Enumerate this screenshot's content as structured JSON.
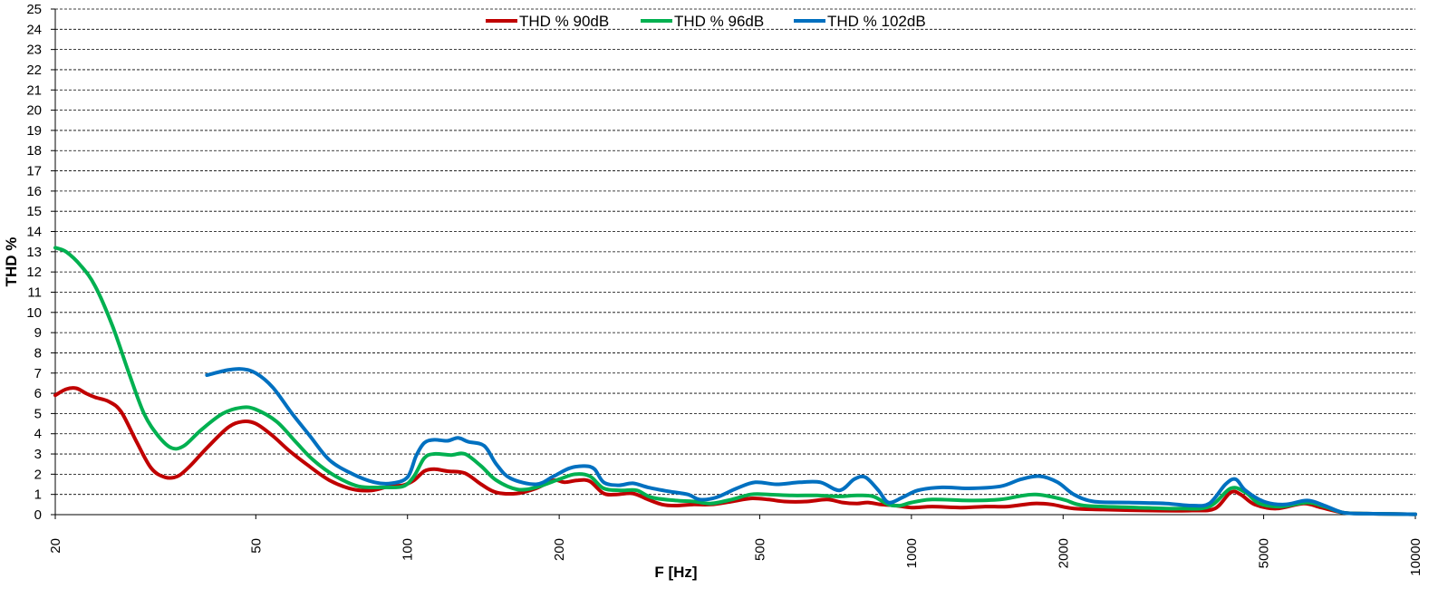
{
  "chart_data": {
    "type": "line",
    "title": "",
    "xlabel": "F [Hz]",
    "ylabel": "THD %",
    "x_scale": "log",
    "xlim": [
      20,
      10000
    ],
    "ylim": [
      0,
      25
    ],
    "x_ticks": [
      20,
      50,
      100,
      200,
      500,
      1000,
      2000,
      5000,
      10000
    ],
    "x_tick_labels": [
      "20",
      "50",
      "100",
      "200",
      "500",
      "1000",
      "2000",
      "5000",
      "10000"
    ],
    "y_ticks": [
      0,
      1,
      2,
      3,
      4,
      5,
      6,
      7,
      8,
      9,
      10,
      11,
      12,
      13,
      14,
      15,
      16,
      17,
      18,
      19,
      20,
      21,
      22,
      23,
      24,
      25
    ],
    "y_tick_labels": [
      "0",
      "1",
      "2",
      "3",
      "4",
      "5",
      "6",
      "7",
      "8",
      "9",
      "10",
      "11",
      "12",
      "13",
      "14",
      "15",
      "16",
      "17",
      "18",
      "19",
      "20",
      "21",
      "22",
      "23",
      "24",
      "25"
    ],
    "grid": "horizontal dashed",
    "legend_position": "top-center",
    "series": [
      {
        "name": "THD % 90dB",
        "color": "#C00000",
        "points": [
          [
            20,
            5.9
          ],
          [
            21,
            6.2
          ],
          [
            22,
            6.25
          ],
          [
            23,
            6.0
          ],
          [
            24,
            5.8
          ],
          [
            25.5,
            5.6
          ],
          [
            27,
            5.1
          ],
          [
            29,
            3.6
          ],
          [
            31,
            2.3
          ],
          [
            33,
            1.85
          ],
          [
            35,
            1.9
          ],
          [
            37,
            2.4
          ],
          [
            40,
            3.3
          ],
          [
            44,
            4.3
          ],
          [
            47,
            4.6
          ],
          [
            50,
            4.5
          ],
          [
            54,
            3.9
          ],
          [
            58,
            3.2
          ],
          [
            63,
            2.5
          ],
          [
            70,
            1.7
          ],
          [
            78,
            1.25
          ],
          [
            85,
            1.2
          ],
          [
            92,
            1.4
          ],
          [
            98,
            1.45
          ],
          [
            103,
            1.7
          ],
          [
            108,
            2.15
          ],
          [
            113,
            2.25
          ],
          [
            120,
            2.15
          ],
          [
            130,
            2.05
          ],
          [
            140,
            1.5
          ],
          [
            150,
            1.1
          ],
          [
            165,
            1.05
          ],
          [
            180,
            1.3
          ],
          [
            195,
            1.7
          ],
          [
            205,
            1.6
          ],
          [
            218,
            1.7
          ],
          [
            230,
            1.65
          ],
          [
            245,
            1.05
          ],
          [
            260,
            1.0
          ],
          [
            280,
            1.05
          ],
          [
            300,
            0.75
          ],
          [
            320,
            0.5
          ],
          [
            340,
            0.45
          ],
          [
            370,
            0.5
          ],
          [
            400,
            0.5
          ],
          [
            440,
            0.65
          ],
          [
            480,
            0.8
          ],
          [
            520,
            0.75
          ],
          [
            560,
            0.65
          ],
          [
            620,
            0.65
          ],
          [
            680,
            0.75
          ],
          [
            730,
            0.6
          ],
          [
            780,
            0.55
          ],
          [
            820,
            0.6
          ],
          [
            870,
            0.5
          ],
          [
            930,
            0.45
          ],
          [
            1000,
            0.35
          ],
          [
            1100,
            0.4
          ],
          [
            1250,
            0.35
          ],
          [
            1400,
            0.4
          ],
          [
            1550,
            0.4
          ],
          [
            1750,
            0.55
          ],
          [
            1900,
            0.5
          ],
          [
            2100,
            0.3
          ],
          [
            2400,
            0.25
          ],
          [
            3000,
            0.2
          ],
          [
            3600,
            0.2
          ],
          [
            4000,
            0.3
          ],
          [
            4300,
            1.1
          ],
          [
            4500,
            1.0
          ],
          [
            4800,
            0.5
          ],
          [
            5300,
            0.3
          ],
          [
            6000,
            0.55
          ],
          [
            6500,
            0.35
          ],
          [
            7200,
            0.1
          ],
          [
            8000,
            0.05
          ],
          [
            9000,
            0.03
          ],
          [
            10000,
            0.02
          ]
        ]
      },
      {
        "name": "THD % 96dB",
        "color": "#00B050",
        "points": [
          [
            20,
            13.2
          ],
          [
            21,
            13.0
          ],
          [
            22.5,
            12.3
          ],
          [
            24,
            11.3
          ],
          [
            26,
            9.3
          ],
          [
            28,
            7.0
          ],
          [
            30,
            5.0
          ],
          [
            32,
            3.9
          ],
          [
            34,
            3.3
          ],
          [
            36,
            3.4
          ],
          [
            39,
            4.2
          ],
          [
            43,
            5.0
          ],
          [
            47,
            5.3
          ],
          [
            50,
            5.2
          ],
          [
            55,
            4.6
          ],
          [
            60,
            3.6
          ],
          [
            65,
            2.7
          ],
          [
            72,
            1.9
          ],
          [
            80,
            1.4
          ],
          [
            90,
            1.35
          ],
          [
            98,
            1.4
          ],
          [
            103,
            1.9
          ],
          [
            108,
            2.8
          ],
          [
            113,
            3.0
          ],
          [
            122,
            2.95
          ],
          [
            130,
            3.0
          ],
          [
            140,
            2.4
          ],
          [
            150,
            1.7
          ],
          [
            165,
            1.25
          ],
          [
            180,
            1.35
          ],
          [
            200,
            1.75
          ],
          [
            215,
            2.0
          ],
          [
            230,
            1.9
          ],
          [
            245,
            1.3
          ],
          [
            265,
            1.2
          ],
          [
            285,
            1.2
          ],
          [
            305,
            0.85
          ],
          [
            340,
            0.7
          ],
          [
            370,
            0.65
          ],
          [
            400,
            0.55
          ],
          [
            440,
            0.75
          ],
          [
            480,
            1.0
          ],
          [
            520,
            1.0
          ],
          [
            580,
            0.95
          ],
          [
            650,
            0.95
          ],
          [
            720,
            0.9
          ],
          [
            780,
            0.95
          ],
          [
            840,
            0.9
          ],
          [
            900,
            0.5
          ],
          [
            950,
            0.45
          ],
          [
            1000,
            0.6
          ],
          [
            1100,
            0.75
          ],
          [
            1300,
            0.7
          ],
          [
            1500,
            0.75
          ],
          [
            1750,
            1.0
          ],
          [
            2000,
            0.75
          ],
          [
            2200,
            0.45
          ],
          [
            2800,
            0.35
          ],
          [
            3400,
            0.3
          ],
          [
            3900,
            0.4
          ],
          [
            4300,
            1.3
          ],
          [
            4600,
            1.1
          ],
          [
            4900,
            0.55
          ],
          [
            5400,
            0.4
          ],
          [
            6100,
            0.6
          ],
          [
            6600,
            0.4
          ],
          [
            7200,
            0.1
          ],
          [
            8000,
            0.05
          ],
          [
            9000,
            0.03
          ],
          [
            10000,
            0.02
          ]
        ]
      },
      {
        "name": "THD % 102dB",
        "color": "#0070C0",
        "points": [
          [
            40,
            6.9
          ],
          [
            44,
            7.15
          ],
          [
            47,
            7.2
          ],
          [
            50,
            7.0
          ],
          [
            54,
            6.3
          ],
          [
            59,
            5.0
          ],
          [
            64,
            3.9
          ],
          [
            70,
            2.7
          ],
          [
            78,
            2.0
          ],
          [
            86,
            1.6
          ],
          [
            93,
            1.55
          ],
          [
            100,
            1.85
          ],
          [
            104,
            2.9
          ],
          [
            108,
            3.55
          ],
          [
            113,
            3.7
          ],
          [
            120,
            3.65
          ],
          [
            126,
            3.8
          ],
          [
            132,
            3.6
          ],
          [
            142,
            3.4
          ],
          [
            150,
            2.5
          ],
          [
            160,
            1.8
          ],
          [
            180,
            1.5
          ],
          [
            195,
            1.9
          ],
          [
            210,
            2.3
          ],
          [
            225,
            2.4
          ],
          [
            235,
            2.25
          ],
          [
            245,
            1.6
          ],
          [
            262,
            1.45
          ],
          [
            280,
            1.55
          ],
          [
            300,
            1.35
          ],
          [
            330,
            1.15
          ],
          [
            360,
            1.0
          ],
          [
            380,
            0.75
          ],
          [
            410,
            0.85
          ],
          [
            450,
            1.3
          ],
          [
            490,
            1.6
          ],
          [
            540,
            1.5
          ],
          [
            600,
            1.6
          ],
          [
            660,
            1.6
          ],
          [
            720,
            1.2
          ],
          [
            770,
            1.75
          ],
          [
            810,
            1.85
          ],
          [
            860,
            1.2
          ],
          [
            900,
            0.6
          ],
          [
            960,
            0.85
          ],
          [
            1030,
            1.2
          ],
          [
            1150,
            1.35
          ],
          [
            1300,
            1.3
          ],
          [
            1500,
            1.4
          ],
          [
            1650,
            1.75
          ],
          [
            1800,
            1.9
          ],
          [
            1950,
            1.6
          ],
          [
            2100,
            1.0
          ],
          [
            2300,
            0.65
          ],
          [
            2700,
            0.6
          ],
          [
            3200,
            0.55
          ],
          [
            3600,
            0.45
          ],
          [
            3900,
            0.55
          ],
          [
            4200,
            1.5
          ],
          [
            4400,
            1.75
          ],
          [
            4600,
            1.2
          ],
          [
            5000,
            0.65
          ],
          [
            5500,
            0.5
          ],
          [
            6100,
            0.7
          ],
          [
            6600,
            0.45
          ],
          [
            7200,
            0.1
          ],
          [
            8000,
            0.05
          ],
          [
            9000,
            0.03
          ],
          [
            10000,
            0.02
          ]
        ]
      }
    ]
  }
}
